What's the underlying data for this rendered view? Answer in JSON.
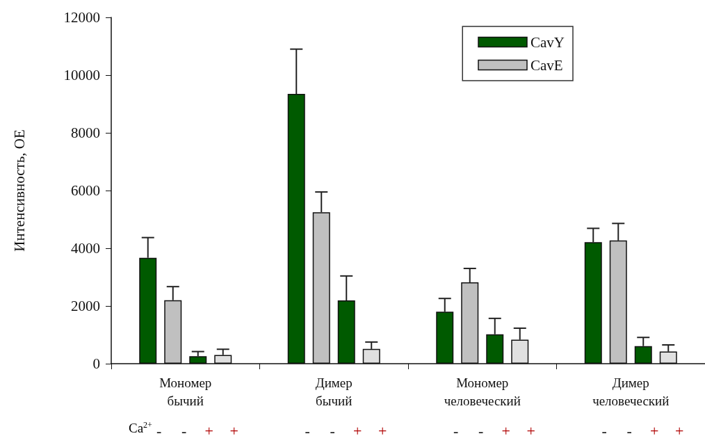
{
  "chart_data": {
    "type": "bar",
    "ylabel": "Интенсивность, ОЕ",
    "categories": [
      "Мономер\nбычий",
      "Димер\nбычий",
      "Мономер\nчеловеческий",
      "Димер\nчеловеческий"
    ],
    "series": [
      {
        "name": "CavY",
        "color": "#005a00",
        "values": [
          3670,
          9350,
          1800,
          4210
        ],
        "errors": [
          [
            3670,
            4370
          ],
          [
            9350,
            10900
          ],
          [
            1800,
            2260
          ],
          [
            4210,
            4690
          ]
        ]
      },
      {
        "name": "CavE",
        "color": "#c0c0c0",
        "values": [
          2200,
          5250,
          2820,
          4270
        ],
        "errors": [
          [
            2200,
            2670
          ],
          [
            5250,
            5950
          ],
          [
            2820,
            3300
          ],
          [
            4270,
            4860
          ]
        ]
      },
      {
        "color": "#005a00",
        "values": [
          260,
          2190,
          1020,
          610
        ],
        "errors": [
          [
            260,
            420
          ],
          [
            2190,
            3040
          ],
          [
            1020,
            1570
          ],
          [
            610,
            910
          ]
        ]
      },
      {
        "color": "#e0e0e0",
        "values": [
          300,
          510,
          830,
          420
        ],
        "errors": [
          [
            300,
            500
          ],
          [
            510,
            750
          ],
          [
            830,
            1230
          ],
          [
            420,
            650
          ]
        ]
      }
    ],
    "annotations": [
      "Ca$^{2+}$",
      "-",
      "-",
      "+",
      "+",
      "-",
      "-",
      "+",
      "+",
      "-",
      "-",
      "+",
      "+",
      "-",
      "-",
      "+",
      "+"
    ],
    "ylim": [
      0,
      12000
    ],
    "yticks": [
      0,
      2000,
      4000,
      6000,
      8000,
      10000,
      12000
    ],
    "grid": false,
    "legend": "top right"
  }
}
